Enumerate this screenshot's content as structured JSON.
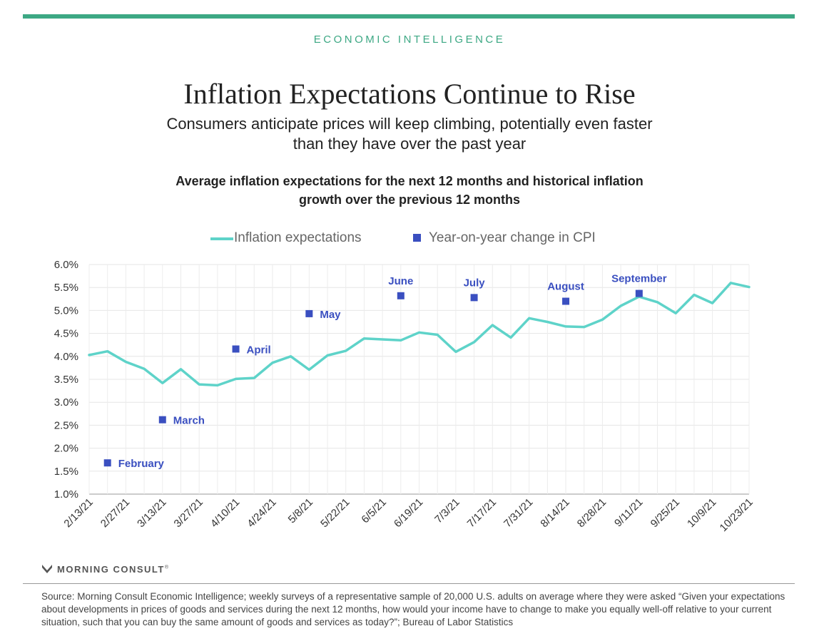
{
  "header": {
    "kicker": "ECONOMIC INTELLIGENCE",
    "title": "Inflation Expectations Continue to Rise",
    "subtitle": "Consumers anticipate prices will keep climbing, potentially even faster than they have over the past year"
  },
  "chart_data": {
    "type": "line",
    "title": "Average inflation expectations for the next 12 months and historical inflation growth over the previous 12 months",
    "xlabel": "",
    "ylabel": "",
    "ylim": [
      1.0,
      6.0
    ],
    "yticks": [
      "1.0%",
      "1.5%",
      "2.0%",
      "2.5%",
      "3.0%",
      "3.5%",
      "4.0%",
      "4.5%",
      "5.0%",
      "5.5%",
      "6.0%"
    ],
    "xticks": [
      "2/13/21",
      "2/27/21",
      "3/13/21",
      "3/27/21",
      "4/10/21",
      "4/24/21",
      "5/8/21",
      "5/22/21",
      "6/5/21",
      "6/19/21",
      "7/3/21",
      "7/17/21",
      "7/31/21",
      "8/14/21",
      "8/28/21",
      "9/11/21",
      "9/25/21",
      "10/9/21",
      "10/23/21"
    ],
    "grid": true,
    "legend": {
      "position": "top"
    },
    "series": [
      {
        "name": "Inflation expectations",
        "color": "#5ed3c9",
        "style": "line",
        "values": [
          4.03,
          4.11,
          3.88,
          3.73,
          3.42,
          3.72,
          3.39,
          3.37,
          3.51,
          3.53,
          3.86,
          4.0,
          3.71,
          4.02,
          4.12,
          4.39,
          4.37,
          4.35,
          4.52,
          4.47,
          4.1,
          4.31,
          4.68,
          4.41,
          4.83,
          4.75,
          4.65,
          4.64,
          4.8,
          5.1,
          5.3,
          5.18,
          4.94,
          5.34,
          5.16,
          5.6,
          5.51
        ]
      },
      {
        "name": "Year-on-year change in CPI",
        "color": "#3a4fc0",
        "style": "marker",
        "points": [
          {
            "label": "February",
            "x_index": 1,
            "value": 1.68,
            "label_pos": "right"
          },
          {
            "label": "March",
            "x_index": 4,
            "value": 2.62,
            "label_pos": "right"
          },
          {
            "label": "April",
            "x_index": 8,
            "value": 4.16,
            "label_pos": "right"
          },
          {
            "label": "May",
            "x_index": 12,
            "value": 4.93,
            "label_pos": "right"
          },
          {
            "label": "June",
            "x_index": 17,
            "value": 5.32,
            "label_pos": "above"
          },
          {
            "label": "July",
            "x_index": 21,
            "value": 5.28,
            "label_pos": "above"
          },
          {
            "label": "August",
            "x_index": 26,
            "value": 5.2,
            "label_pos": "above"
          },
          {
            "label": "September",
            "x_index": 30,
            "value": 5.37,
            "label_pos": "above"
          }
        ]
      }
    ]
  },
  "brand": {
    "name": "MORNING CONSULT",
    "mark": "®"
  },
  "source": "Source: Morning Consult Economic Intelligence; weekly surveys of a representative sample of 20,000 U.S. adults on average where they were asked “Given your expectations about developments in prices of goods and services during the next 12 months, how would your income have to change to make you equally well-off relative to your current situation, such that you can buy the same amount of goods and services as today?”; Bureau of Labor Statistics"
}
